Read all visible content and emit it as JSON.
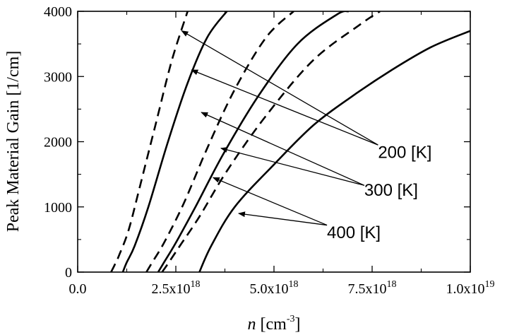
{
  "chart_data": {
    "type": "line",
    "title": "",
    "xlabel": "n [cm-3]",
    "xlabel_parts": {
      "var": "n",
      "unit_open": " [cm",
      "exp": "-3",
      "unit_close": "]"
    },
    "ylabel": "Peak Material Gain [1/cm]",
    "xlim": [
      0,
      1e+19
    ],
    "ylim": [
      0,
      4000
    ],
    "x_ticks": [
      {
        "value": 0,
        "label": "0.0",
        "mantissa": "0.0",
        "exp": ""
      },
      {
        "value": 2.5e+18,
        "label": "2.5x10^18",
        "mantissa": "2.5x10",
        "exp": "18"
      },
      {
        "value": 5e+18,
        "label": "5.0x10^18",
        "mantissa": "5.0x10",
        "exp": "18"
      },
      {
        "value": 7.5e+18,
        "label": "7.5x10^18",
        "mantissa": "7.5x10",
        "exp": "18"
      },
      {
        "value": 1e+19,
        "label": "1.0x10^19",
        "mantissa": "1.0x10",
        "exp": "19"
      }
    ],
    "y_ticks": [
      {
        "value": 0,
        "label": "0"
      },
      {
        "value": 1000,
        "label": "1000"
      },
      {
        "value": 2000,
        "label": "2000"
      },
      {
        "value": 3000,
        "label": "3000"
      },
      {
        "value": 4000,
        "label": "4000"
      }
    ],
    "grid": false,
    "series": [
      {
        "group": "200 [K]",
        "style": "dashed",
        "x": [
          8.5e+17,
          9.5e+17,
          1.05e+18,
          1.3e+18,
          1.6e+18,
          2e+18,
          2.4e+18,
          2.8e+18
        ],
        "y": [
          0,
          120,
          250,
          650,
          1350,
          2300,
          3250,
          4000
        ]
      },
      {
        "group": "200 [K]",
        "style": "solid",
        "x": [
          1.15e+18,
          1.25e+18,
          1.45e+18,
          1.8e+18,
          2.3e+18,
          2.8e+18,
          3.3e+18,
          3.8e+18
        ],
        "y": [
          0,
          150,
          400,
          1000,
          2000,
          2900,
          3600,
          4000
        ]
      },
      {
        "group": "300 [K]",
        "style": "dashed",
        "x": [
          1.75e+18,
          1.9e+18,
          2.2e+18,
          2.7e+18,
          3.3e+18,
          4e+18,
          4.8e+18,
          5.5e+18
        ],
        "y": [
          0,
          150,
          450,
          1050,
          1900,
          2800,
          3600,
          4000
        ]
      },
      {
        "group": "300 [K]",
        "style": "solid",
        "x": [
          2.05e+18,
          2.2e+18,
          2.5e+18,
          3e+18,
          3.7e+18,
          4.6e+18,
          5.6e+18,
          6.6e+18,
          6.9e+18
        ],
        "y": [
          0,
          150,
          450,
          1000,
          1800,
          2700,
          3500,
          3950,
          4000
        ]
      },
      {
        "group": "400 [K]",
        "style": "dashed",
        "x": [
          2.15e+18,
          2.3e+18,
          2.6e+18,
          3.1e+18,
          3.8e+18,
          4.8e+18,
          6e+18,
          7.2e+18,
          7.7e+18
        ],
        "y": [
          0,
          130,
          400,
          850,
          1550,
          2400,
          3250,
          3800,
          4000
        ]
      },
      {
        "group": "400 [K]",
        "style": "solid",
        "x": [
          3.1e+18,
          3.4e+18,
          4e+18,
          5e+18,
          6e+18,
          7e+18,
          8e+18,
          9e+18,
          1e+19
        ],
        "y": [
          0,
          400,
          1000,
          1650,
          2250,
          2700,
          3100,
          3450,
          3700
        ]
      }
    ],
    "annotations": [
      {
        "text": "200 [K]",
        "label_at": {
          "x": 7.65e+18,
          "y": 1850
        },
        "arrow_from": {
          "x": 7.65e+18,
          "y": 1950
        },
        "arrow_to": [
          {
            "x": 2.65e+18,
            "y": 3700
          },
          {
            "x": 2.9e+18,
            "y": 3100
          }
        ]
      },
      {
        "text": "300 [K]",
        "label_at": {
          "x": 7.3e+18,
          "y": 1270
        },
        "arrow_from": {
          "x": 7.3e+18,
          "y": 1330
        },
        "arrow_to": [
          {
            "x": 3.15e+18,
            "y": 2450
          },
          {
            "x": 3.65e+18,
            "y": 1900
          }
        ]
      },
      {
        "text": "400 [K]",
        "label_at": {
          "x": 6.35e+18,
          "y": 620
        },
        "arrow_from": {
          "x": 6.35e+18,
          "y": 720
        },
        "arrow_to": [
          {
            "x": 3.45e+18,
            "y": 1450
          },
          {
            "x": 4.1e+18,
            "y": 900
          }
        ]
      }
    ]
  }
}
